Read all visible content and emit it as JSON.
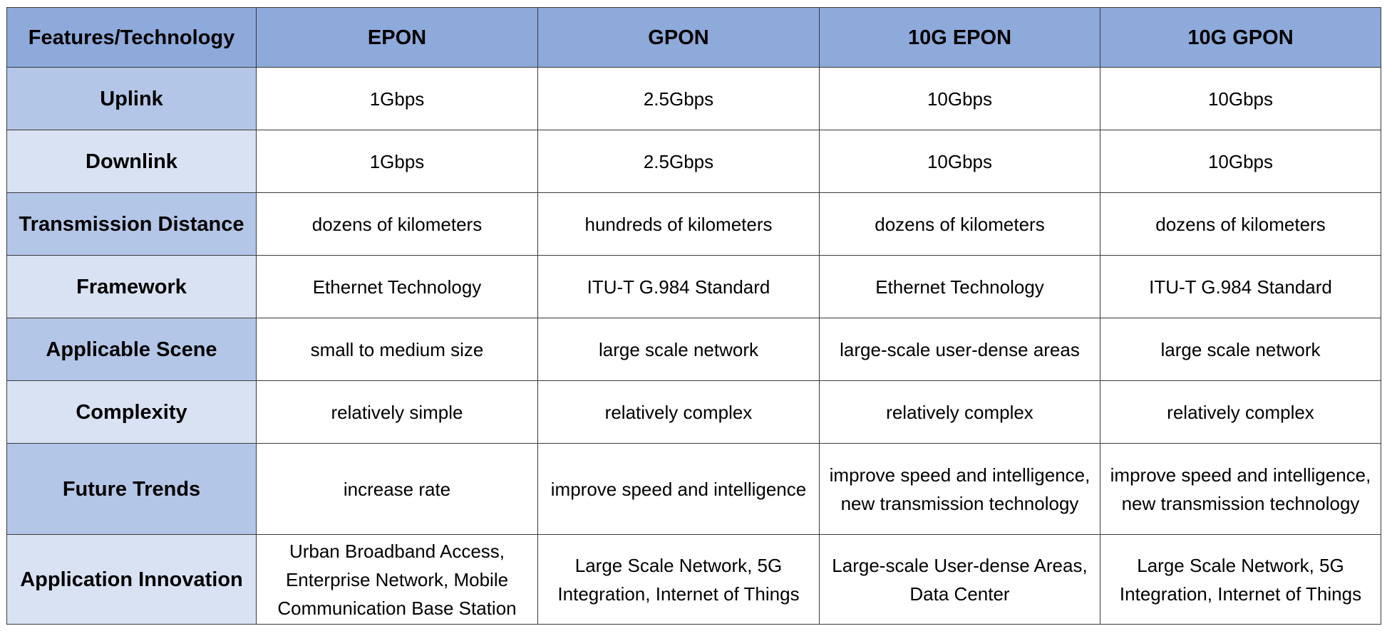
{
  "table": {
    "header": [
      "Features/Technology",
      "EPON",
      "GPON",
      "10G EPON",
      "10G GPON"
    ],
    "rows": [
      {
        "feature": "Uplink",
        "values": [
          "1Gbps",
          "2.5Gbps",
          "10Gbps",
          "10Gbps"
        ]
      },
      {
        "feature": "Downlink",
        "values": [
          "1Gbps",
          "2.5Gbps",
          "10Gbps",
          "10Gbps"
        ]
      },
      {
        "feature": "Transmission Distance",
        "values": [
          "dozens of kilometers",
          "hundreds of kilometers",
          "dozens of kilometers",
          "dozens of kilometers"
        ]
      },
      {
        "feature": "Framework",
        "values": [
          "Ethernet Technology",
          "ITU-T G.984 Standard",
          "Ethernet Technology",
          "ITU-T G.984 Standard"
        ]
      },
      {
        "feature": "Applicable Scene",
        "values": [
          "small to medium size",
          "large scale network",
          "large-scale user-dense areas",
          "large scale network"
        ]
      },
      {
        "feature": "Complexity",
        "values": [
          "relatively simple",
          "relatively complex",
          "relatively complex",
          "relatively complex"
        ]
      },
      {
        "feature": "Future Trends",
        "values": [
          "increase rate",
          "improve speed and intelligence",
          "improve speed and intelligence, new transmission technology",
          "improve speed and intelligence, new transmission technology"
        ]
      },
      {
        "feature": "Application Innovation",
        "values": [
          "Urban Broadband Access, Enterprise Network, Mobile Communication Base Station",
          "Large Scale Network, 5G Integration, Internet of Things",
          "Large-scale User-dense Areas, Data Center",
          "Large Scale Network, 5G Integration, Internet of Things"
        ]
      }
    ]
  },
  "colors": {
    "header_bg": "#8eaadb",
    "feature_odd_bg": "#b4c6e7",
    "feature_even_bg": "#d9e2f3",
    "cell_bg": "#ffffff",
    "border": "#3a3a3a"
  }
}
